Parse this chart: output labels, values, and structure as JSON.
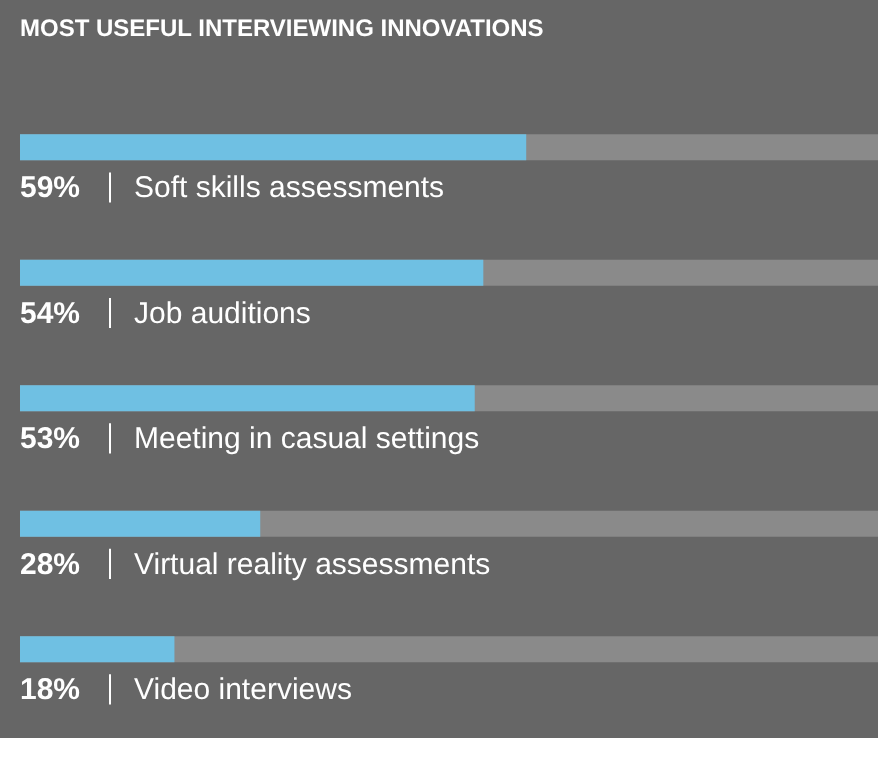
{
  "chart_data": {
    "type": "bar",
    "orientation": "horizontal",
    "title": "MOST USEFUL INTERVIEWING INNOVATIONS",
    "categories": [
      "Soft skills assessments",
      "Job auditions",
      "Meeting in casual settings",
      "Virtual reality assessments",
      "Video interviews"
    ],
    "values": [
      59,
      54,
      53,
      28,
      18
    ],
    "value_labels": [
      "59%",
      "54%",
      "53%",
      "28%",
      "18%"
    ],
    "color": "#6fc0e3",
    "xlim": [
      0,
      100
    ],
    "data_labels": true
  }
}
